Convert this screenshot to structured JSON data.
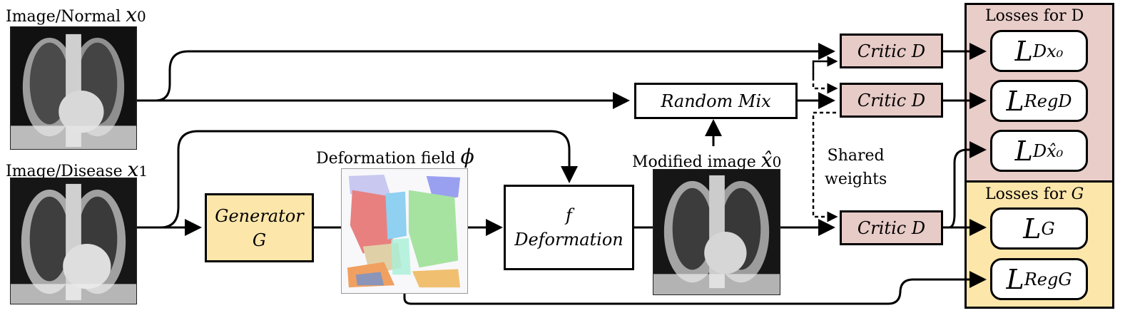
{
  "labels": {
    "normal_image": "Image/Normal",
    "normal_var": "x",
    "normal_sub": "0",
    "disease_image": "Image/Disease",
    "disease_var": "x",
    "disease_sub": "1",
    "deformation_field": "Deformation field",
    "phi": "ϕ",
    "modified_image": "Modified image",
    "modified_var": "x̂",
    "modified_sub": "0",
    "shared_weights_1": "Shared",
    "shared_weights_2": "weights"
  },
  "blocks": {
    "generator_1": "Generator",
    "generator_2": "G",
    "deformation_1": "f",
    "deformation_2": "Deformation",
    "random_mix": "Random Mix",
    "critic": "Critic D"
  },
  "panels": {
    "losses_d_title": "Losses for D",
    "losses_g_prefix": "Losses for ",
    "losses_g_var": "G"
  },
  "losses": {
    "l_dx0_main": "L",
    "l_dx0_sub": "Dx₀",
    "l_regd_main": "L",
    "l_regd_sub": "RegD",
    "l_dxhat_main": "L",
    "l_dxhat_sub": "Dx̂₀",
    "l_g_main": "L",
    "l_g_sub": "G",
    "l_regg_main": "L",
    "l_regg_sub": "RegG"
  },
  "colors": {
    "critic_fill": "#e7cbc7",
    "losses_d_fill": "#e9cdc9",
    "losses_g_fill": "#fce6aa",
    "generator_fill": "#fce6aa"
  }
}
